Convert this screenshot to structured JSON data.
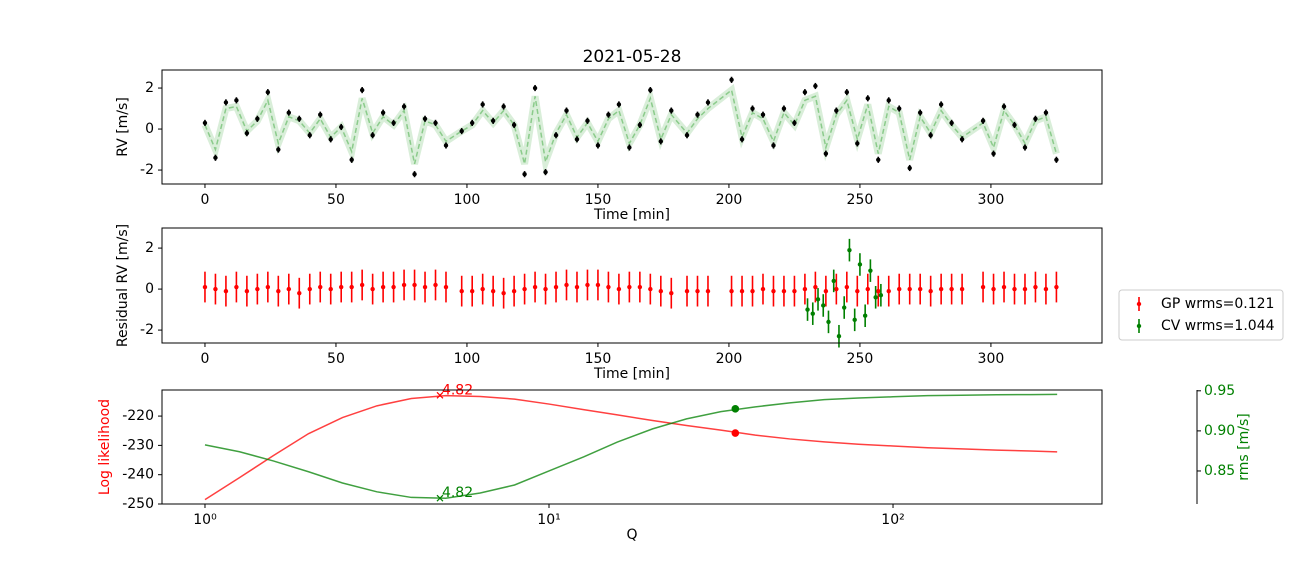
{
  "chart_data": [
    {
      "type": "scatter",
      "title": "2021-05-28",
      "xlabel": "Time [min]",
      "ylabel": "RV [m/s]",
      "xlim": [
        -16.4,
        342.4
      ],
      "ylim": [
        -2.68,
        2.88
      ],
      "xticks": [
        0,
        50,
        100,
        150,
        200,
        250,
        300
      ],
      "yticks": [
        -2,
        0,
        2
      ],
      "x": [
        0,
        4,
        8,
        12,
        16,
        20,
        24,
        28,
        32,
        36,
        40,
        44,
        48,
        52,
        56,
        60,
        64,
        68,
        72,
        76,
        80,
        84,
        88,
        92,
        98,
        102,
        106,
        110,
        114,
        118,
        122,
        126,
        130,
        134,
        138,
        142,
        146,
        150,
        154,
        158,
        162,
        166,
        170,
        174,
        178,
        184,
        188,
        192,
        201,
        205,
        209,
        213,
        217,
        221,
        225,
        229,
        233,
        237,
        241,
        245,
        249,
        253,
        257,
        261,
        265,
        269,
        273,
        277,
        281,
        285,
        289,
        297,
        301,
        305,
        309,
        313,
        317,
        321,
        325
      ],
      "series": [
        {
          "color": "#000000",
          "error": 0.15,
          "values": [
            0.3,
            -1.4,
            1.3,
            1.4,
            -0.2,
            0.5,
            1.8,
            -1.0,
            0.8,
            0.5,
            -0.3,
            0.7,
            -0.5,
            0.1,
            -1.5,
            1.9,
            -0.3,
            0.8,
            0.3,
            1.1,
            -2.2,
            0.5,
            0.3,
            -0.8,
            -0.1,
            0.3,
            1.2,
            0.4,
            1.1,
            0.2,
            -2.2,
            2.0,
            -2.1,
            -0.3,
            0.9,
            -0.5,
            0.4,
            -0.8,
            0.7,
            1.2,
            -0.9,
            0.2,
            1.9,
            -0.6,
            0.9,
            -0.3,
            0.7,
            1.3,
            2.4,
            -0.5,
            1.0,
            0.7,
            -0.8,
            1.0,
            0.3,
            1.8,
            2.1,
            -1.2,
            0.9,
            1.8,
            -0.7,
            1.5,
            -1.5,
            1.4,
            1.0,
            -1.9,
            0.8,
            -0.3,
            1.2,
            0.3,
            -0.5,
            0.4,
            -1.2,
            1.1,
            0.2,
            -0.9,
            0.5,
            0.8,
            -1.5
          ]
        }
      ],
      "model": {
        "color": "#2ca02c",
        "values": [
          0.2,
          -1.0,
          1.0,
          1.1,
          -0.1,
          0.4,
          1.4,
          -0.7,
          0.6,
          0.4,
          -0.2,
          0.5,
          -0.4,
          0.1,
          -1.1,
          1.5,
          -0.2,
          0.6,
          0.2,
          0.9,
          -1.7,
          0.4,
          0.2,
          -0.6,
          -0.1,
          0.2,
          0.9,
          0.3,
          0.9,
          0.2,
          -1.7,
          1.6,
          -1.6,
          -0.2,
          0.7,
          -0.4,
          0.3,
          -0.6,
          0.5,
          0.9,
          -0.7,
          0.2,
          1.5,
          -0.5,
          0.7,
          -0.2,
          0.5,
          1.0,
          1.9,
          -0.4,
          0.8,
          0.5,
          -0.6,
          0.8,
          0.2,
          1.4,
          1.6,
          -0.9,
          0.7,
          1.4,
          -0.5,
          1.2,
          -1.2,
          1.1,
          0.8,
          -1.5,
          0.6,
          -0.2,
          0.9,
          0.2,
          -0.4,
          0.3,
          -0.9,
          0.9,
          0.2,
          -0.7,
          0.4,
          0.6,
          -1.2
        ]
      }
    },
    {
      "type": "scatter",
      "xlabel": "Time [min]",
      "ylabel": "Residual RV [m/s]",
      "xlim": [
        -16.4,
        342.4
      ],
      "ylim": [
        -2.63,
        2.98
      ],
      "xticks": [
        0,
        50,
        100,
        150,
        200,
        250,
        300
      ],
      "yticks": [
        -2,
        0,
        2
      ],
      "legend": "right",
      "series": [
        {
          "name": "GP wrms=0.121",
          "color": "#ff0000",
          "error": 0.75,
          "x": [
            0,
            4,
            8,
            12,
            16,
            20,
            24,
            28,
            32,
            36,
            40,
            44,
            48,
            52,
            56,
            60,
            64,
            68,
            72,
            76,
            80,
            84,
            88,
            92,
            98,
            102,
            106,
            110,
            114,
            118,
            122,
            126,
            130,
            134,
            138,
            142,
            146,
            150,
            154,
            158,
            162,
            166,
            170,
            174,
            178,
            184,
            188,
            192,
            201,
            205,
            209,
            213,
            217,
            221,
            225,
            229,
            233,
            237,
            241,
            245,
            249,
            253,
            257,
            261,
            265,
            269,
            273,
            277,
            281,
            285,
            289,
            297,
            301,
            305,
            309,
            313,
            317,
            321,
            325
          ],
          "values": [
            0.1,
            0.0,
            -0.1,
            0.1,
            -0.1,
            0.0,
            0.1,
            -0.1,
            0.0,
            -0.2,
            0.0,
            0.1,
            0.0,
            0.1,
            0.1,
            0.2,
            0.0,
            0.1,
            0.1,
            0.2,
            0.2,
            0.1,
            0.2,
            0.1,
            -0.1,
            -0.1,
            0.0,
            -0.1,
            -0.2,
            -0.1,
            0.0,
            0.1,
            0.0,
            0.1,
            0.2,
            0.1,
            0.2,
            0.2,
            0.1,
            0.0,
            0.1,
            0.1,
            0.0,
            -0.1,
            -0.2,
            -0.1,
            -0.1,
            -0.1,
            -0.1,
            -0.1,
            -0.1,
            0.0,
            -0.1,
            -0.1,
            -0.1,
            0.0,
            0.1,
            -0.1,
            0.0,
            0.1,
            -0.1,
            0.0,
            -0.1,
            -0.1,
            0.0,
            0.0,
            0.0,
            -0.1,
            0.0,
            0.0,
            0.0,
            0.1,
            0.0,
            0.1,
            0.0,
            0.0,
            0.1,
            0.0,
            0.1
          ]
        },
        {
          "name": "CV wrms=1.044",
          "color": "#008000",
          "error": 0.55,
          "x": [
            230,
            232,
            234,
            236,
            238,
            240,
            242,
            244,
            246,
            248,
            250,
            252,
            254,
            256,
            258
          ],
          "values": [
            -1.0,
            -1.2,
            -0.5,
            -0.8,
            -1.6,
            0.4,
            -2.3,
            -0.9,
            1.9,
            -1.5,
            1.2,
            -1.3,
            0.9,
            -0.4,
            -0.3
          ]
        }
      ]
    },
    {
      "type": "line",
      "xlabel": "Q",
      "ylabel": "Log likelihood",
      "y2label": "rms [m/s]",
      "xscale": "log",
      "xlim": [
        0.75,
        405
      ],
      "ylim": [
        -250,
        -211.1
      ],
      "y2lim": [
        0.8088,
        0.951
      ],
      "xticks": [
        {
          "value": 1,
          "label": "10⁰"
        },
        {
          "value": 10,
          "label": "10¹"
        },
        {
          "value": 100,
          "label": "10²"
        }
      ],
      "yticks": [
        -250,
        -240,
        -230,
        -220
      ],
      "y2ticks": [
        0.85,
        {
          "value": 0.9,
          "label": "0.90"
        },
        0.95
      ],
      "x": [
        1,
        1.26,
        1.58,
        2,
        2.51,
        3.16,
        3.98,
        5.01,
        6.31,
        7.94,
        10,
        12.6,
        15.8,
        20,
        25.1,
        31.6,
        39.8,
        50.1,
        63.1,
        79.4,
        100,
        126,
        158,
        200,
        251,
        300
      ],
      "series": [
        {
          "color": "#ff0000",
          "values": [
            -248.5,
            -241,
            -233.5,
            -226,
            -220.5,
            -216.5,
            -214,
            -213,
            -213.3,
            -214.2,
            -215.9,
            -217.8,
            -219.6,
            -221.5,
            -223.2,
            -224.8,
            -226.5,
            -227.8,
            -228.8,
            -229.6,
            -230.2,
            -230.8,
            -231.2,
            -231.6,
            -231.9,
            -232.2
          ]
        },
        {
          "color": "#008000",
          "axis": "y2",
          "values": [
            0.8825,
            0.874,
            0.8625,
            0.849,
            0.835,
            0.824,
            0.817,
            0.816,
            0.8225,
            0.8325,
            0.85,
            0.8675,
            0.886,
            0.9025,
            0.915,
            0.924,
            0.93,
            0.935,
            0.939,
            0.941,
            0.9425,
            0.944,
            0.9444,
            0.945,
            0.9453,
            0.9456
          ]
        }
      ],
      "annotations": [
        {
          "text": "4.82",
          "x": 4.82,
          "y": -212.9,
          "color": "#ff0000"
        },
        {
          "text": "4.82",
          "x": 4.82,
          "y": 0.816,
          "axis": "y2",
          "color": "#008000"
        }
      ],
      "points": [
        {
          "x": 34.8,
          "y": -225.8,
          "color": "#ff0000"
        },
        {
          "x": 34.8,
          "y": 0.9275,
          "axis": "y2",
          "color": "#008000"
        }
      ]
    }
  ]
}
